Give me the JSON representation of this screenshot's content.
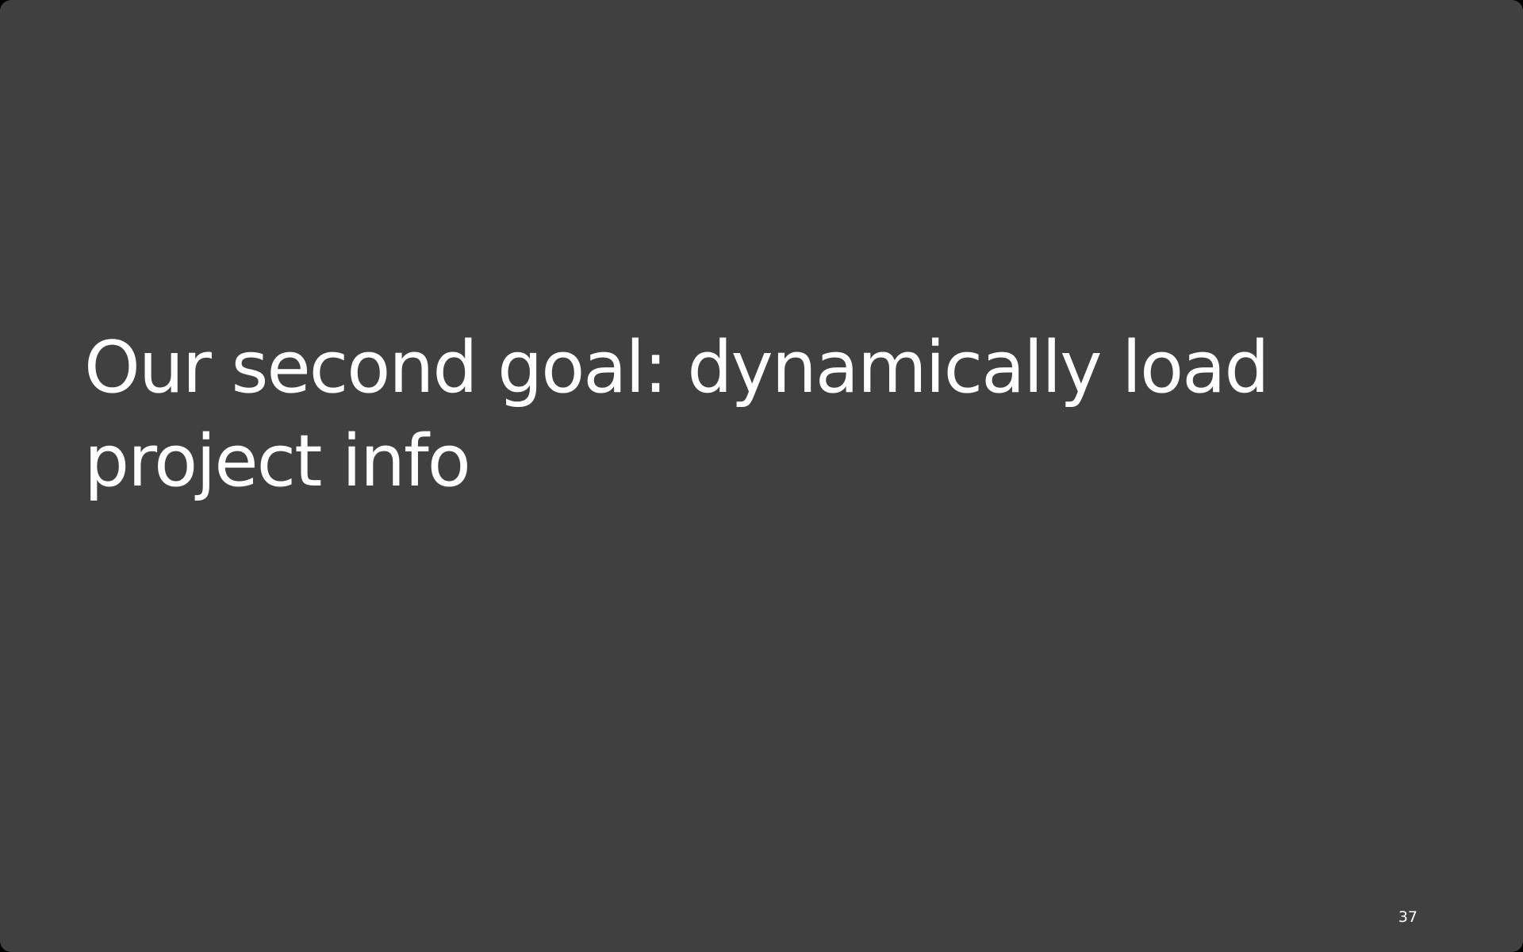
{
  "slide": {
    "title": "Our second goal: dynamically load project info",
    "page_number": "37"
  },
  "colors": {
    "background": "#404040",
    "text": "#ffffff"
  }
}
